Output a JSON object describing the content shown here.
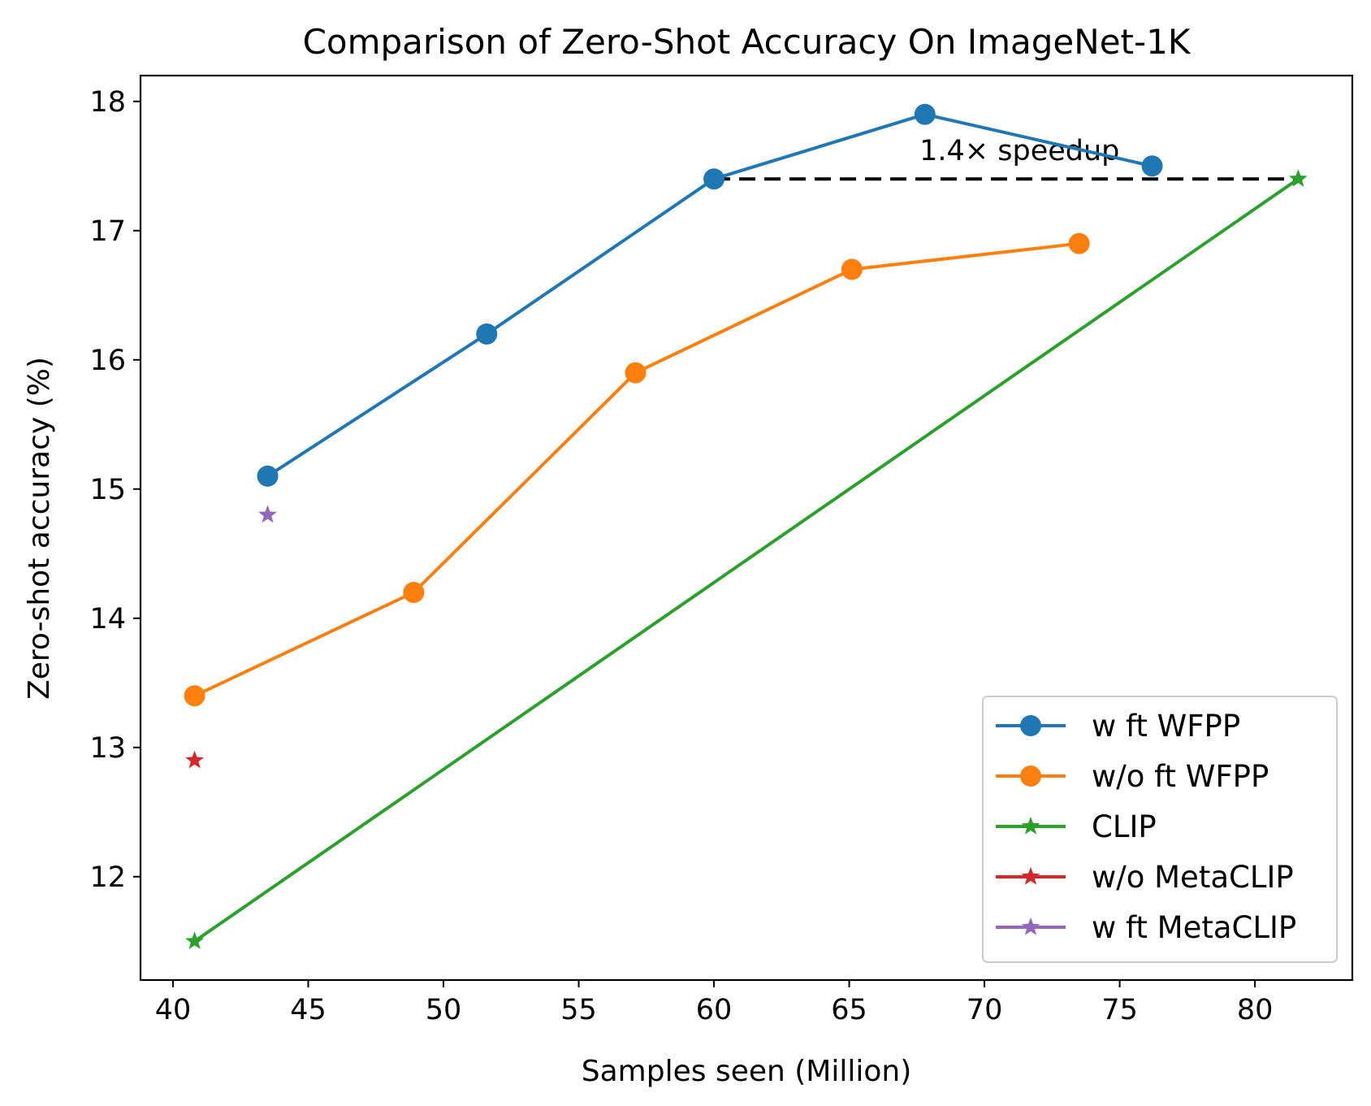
{
  "chart_data": {
    "type": "line",
    "title": "Comparison of Zero-Shot Accuracy On ImageNet-1K",
    "xlabel": "Samples seen (Million)",
    "ylabel": "Zero-shot accuracy (%)",
    "xlim": [
      38.8,
      83.6
    ],
    "ylim": [
      11.2,
      18.2
    ],
    "xticks": [
      40,
      45,
      50,
      55,
      60,
      65,
      70,
      75,
      80
    ],
    "yticks": [
      12,
      13,
      14,
      15,
      16,
      17,
      18
    ],
    "grid": false,
    "legend_position": "lower-right",
    "series": [
      {
        "name": "w ft WFPP",
        "color": "#1f77b4",
        "marker": "circle",
        "x": [
          43.5,
          51.6,
          60.0,
          67.8,
          76.2
        ],
        "y": [
          15.1,
          16.2,
          17.4,
          17.9,
          17.5
        ]
      },
      {
        "name": "w/o ft WFPP",
        "color": "#ff7f0e",
        "marker": "circle",
        "x": [
          40.8,
          48.9,
          57.1,
          65.1,
          73.5
        ],
        "y": [
          13.4,
          14.2,
          15.9,
          16.7,
          16.9
        ]
      },
      {
        "name": "CLIP",
        "color": "#2ca02c",
        "marker": "star",
        "x": [
          40.8,
          81.6
        ],
        "y": [
          11.5,
          17.4
        ]
      },
      {
        "name": "w/o MetaCLIP",
        "color": "#d62728",
        "marker": "star",
        "x": [
          40.8
        ],
        "y": [
          12.9
        ]
      },
      {
        "name": "w ft MetaCLIP",
        "color": "#9467bd",
        "marker": "star",
        "x": [
          43.5
        ],
        "y": [
          14.8
        ]
      }
    ],
    "annotations": [
      {
        "type": "dashed-hline",
        "x_start": 60.0,
        "x_end": 81.6,
        "y": 17.4,
        "color": "#000000"
      },
      {
        "type": "text",
        "text": "1.4× speedup",
        "x": 67.6,
        "y": 17.62
      }
    ]
  }
}
